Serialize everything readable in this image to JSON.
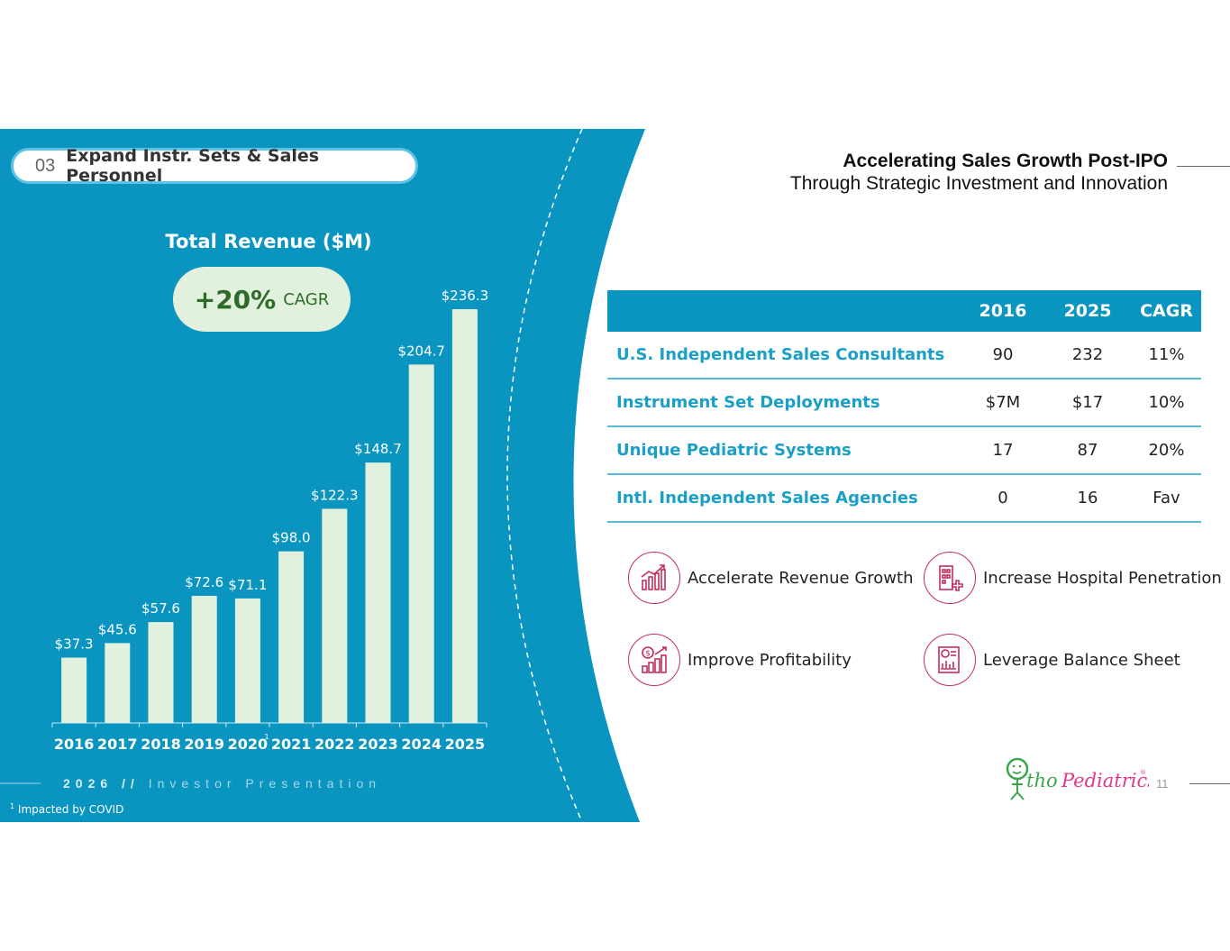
{
  "section": {
    "number": "03",
    "title": "Expand Instr. Sets & Sales Personnel"
  },
  "cagr_badge": {
    "value": "+20%",
    "label": "CAGR"
  },
  "heading": {
    "title": "Accelerating Sales Growth Post-IPO",
    "subtitle": "Through Strategic Investment and Innovation"
  },
  "chart_data": {
    "type": "bar",
    "title": "Total Revenue ($M)",
    "categories": [
      "2016",
      "2017",
      "2018",
      "2019",
      "2020",
      "2021",
      "2022",
      "2023",
      "2024",
      "2025"
    ],
    "values": [
      37.3,
      45.6,
      57.6,
      72.6,
      71.1,
      98.0,
      122.3,
      148.7,
      204.7,
      236.3
    ],
    "value_labels": [
      "$37.3",
      "$45.6",
      "$57.6",
      "$72.6",
      "$71.1",
      "$98.0",
      "$122.3",
      "$148.7",
      "$204.7",
      "$236.3"
    ],
    "footnote_marker": {
      "category": "2020",
      "marker": "1"
    },
    "ylim": [
      0,
      236.3
    ],
    "bar_color": "#e2f1dd",
    "background": "#0a95c1"
  },
  "table": {
    "headers": [
      "",
      "2016",
      "2025",
      "CAGR"
    ],
    "rows": [
      {
        "label": "U.S. Independent Sales Consultants",
        "v2016": "90",
        "v2025": "232",
        "cagr": "11%"
      },
      {
        "label": "Instrument Set Deployments",
        "v2016": "$7M",
        "v2025": "$17",
        "cagr": "10%"
      },
      {
        "label": "Unique Pediatric Systems",
        "v2016": "17",
        "v2025": "87",
        "cagr": "20%"
      },
      {
        "label": "Intl. Independent Sales Agencies",
        "v2016": "0",
        "v2025": "16",
        "cagr": "Fav"
      }
    ]
  },
  "features": [
    {
      "label": "Accelerate Revenue Growth",
      "icon": "growth-chart-icon"
    },
    {
      "label": "Increase Hospital Penetration",
      "icon": "hospital-icon"
    },
    {
      "label": "Improve Profitability",
      "icon": "dollar-chart-icon"
    },
    {
      "label": "Leverage Balance Sheet",
      "icon": "balance-sheet-icon"
    }
  ],
  "footer": {
    "year": "2026",
    "separator": "//",
    "text": "Investor Presentation",
    "page": "11"
  },
  "footnote": {
    "marker": "1",
    "text": "Impacted by COVID"
  },
  "logo": {
    "text": "OrthoPediatrics",
    "mark": "®"
  },
  "colors": {
    "primary": "#0a95c1",
    "accent": "#1a9fc8",
    "icon_ring": "#c42c5a",
    "cagr_text": "#2e6b2a"
  }
}
